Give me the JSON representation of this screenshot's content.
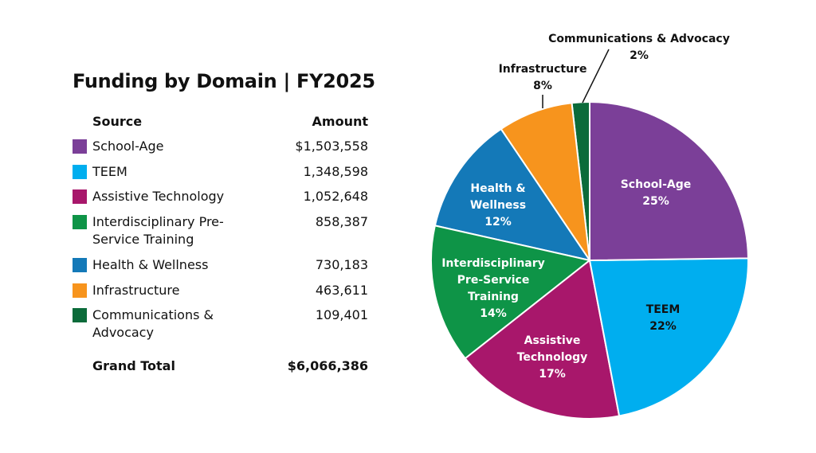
{
  "chart_data": {
    "type": "pie",
    "title": "Funding by Domain | FY2025",
    "table": {
      "headers": [
        "Source",
        "Amount"
      ],
      "rows": [
        {
          "source": "School-Age",
          "amount": "$1,503,558"
        },
        {
          "source": "TEEM",
          "amount": "1,348,598"
        },
        {
          "source": "Assistive Technology",
          "amount": "1,052,648"
        },
        {
          "source": "Interdisciplinary Pre-Service Training",
          "amount": "858,387"
        },
        {
          "source": "Health & Wellness",
          "amount": "730,183"
        },
        {
          "source": "Infrastructure",
          "amount": "463,611"
        },
        {
          "source": "Communications & Advocacy",
          "amount": "109,401"
        }
      ],
      "total_label": "Grand Total",
      "total_amount": "$6,066,386"
    },
    "slices": [
      {
        "label": "School-Age",
        "value": 1503558,
        "percent": "25%",
        "color": "#7B3F98"
      },
      {
        "label": "TEEM",
        "value": 1348598,
        "percent": "22%",
        "color": "#00AEEF"
      },
      {
        "label": "Assistive Technology",
        "value": 1052648,
        "percent": "17%",
        "color": "#A8176B"
      },
      {
        "label": "Interdisciplinary Pre-Service Training",
        "value": 858387,
        "percent": "14%",
        "color": "#0E9447"
      },
      {
        "label": "Health & Wellness",
        "value": 730183,
        "percent": "12%",
        "color": "#1479B8"
      },
      {
        "label": "Infrastructure",
        "value": 463611,
        "percent": "8%",
        "color": "#F7941D"
      },
      {
        "label": "Communications & Advocacy",
        "value": 109401,
        "percent": "2%",
        "color": "#0B6B3A"
      }
    ],
    "start_angle": "top, clockwise"
  }
}
